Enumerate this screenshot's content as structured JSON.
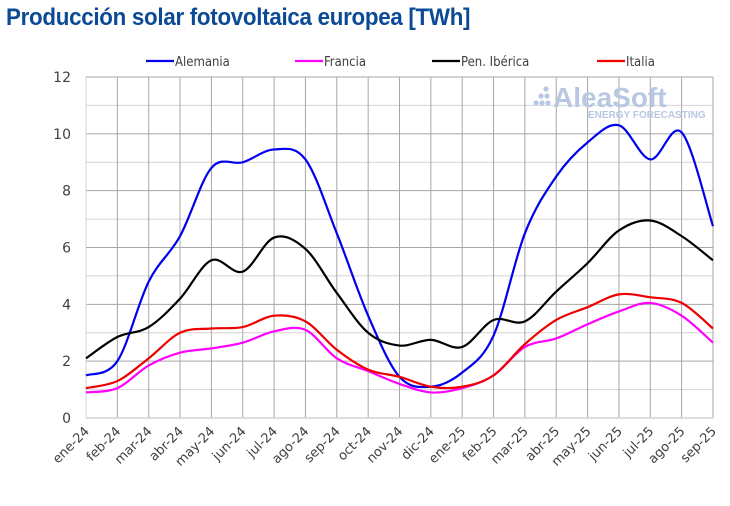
{
  "chart_data": {
    "type": "line",
    "title": "Producción solar fotovoltaica europea [TWh]",
    "xlabel": "",
    "ylabel": "",
    "ylim": [
      0,
      12
    ],
    "yticks": [
      0,
      2,
      4,
      6,
      8,
      10,
      12
    ],
    "grid": true,
    "legend_position": "top",
    "categories": [
      "ene-24",
      "feb-24",
      "mar-24",
      "abr-24",
      "may-24",
      "jun-24",
      "jul-24",
      "ago-24",
      "sep-24",
      "oct-24",
      "nov-24",
      "dic-24",
      "ene-25",
      "feb-25",
      "mar-25",
      "abr-25",
      "may-25",
      "jun-25",
      "jul-25",
      "ago-25",
      "sep-25"
    ],
    "series": [
      {
        "name": "Alemania",
        "color": "#0000ee",
        "values": [
          1.5,
          2.0,
          4.8,
          6.4,
          8.8,
          9.0,
          9.45,
          9.1,
          6.5,
          3.6,
          1.45,
          1.1,
          1.6,
          2.9,
          6.5,
          8.5,
          9.7,
          10.3,
          9.1,
          10.05,
          6.75
        ]
      },
      {
        "name": "Francia",
        "color": "#ff00ff",
        "values": [
          0.9,
          1.05,
          1.85,
          2.3,
          2.45,
          2.65,
          3.05,
          3.1,
          2.1,
          1.65,
          1.2,
          0.9,
          1.05,
          1.5,
          2.5,
          2.8,
          3.3,
          3.75,
          4.05,
          3.6,
          2.65
        ]
      },
      {
        "name": "Pen. Ibérica",
        "color": "#000000",
        "values": [
          2.1,
          2.85,
          3.2,
          4.2,
          5.55,
          5.15,
          6.35,
          5.95,
          4.4,
          3.0,
          2.55,
          2.75,
          2.5,
          3.45,
          3.4,
          4.45,
          5.45,
          6.6,
          6.95,
          6.4,
          5.55
        ]
      },
      {
        "name": "Italia",
        "color": "#ee0000",
        "values": [
          1.05,
          1.3,
          2.1,
          3.0,
          3.15,
          3.2,
          3.6,
          3.4,
          2.4,
          1.7,
          1.45,
          1.1,
          1.1,
          1.5,
          2.6,
          3.45,
          3.9,
          4.35,
          4.25,
          4.05,
          3.15
        ]
      }
    ]
  },
  "watermark": {
    "brand": "AleaSoft",
    "tagline": "ENERGY FORECASTING"
  }
}
